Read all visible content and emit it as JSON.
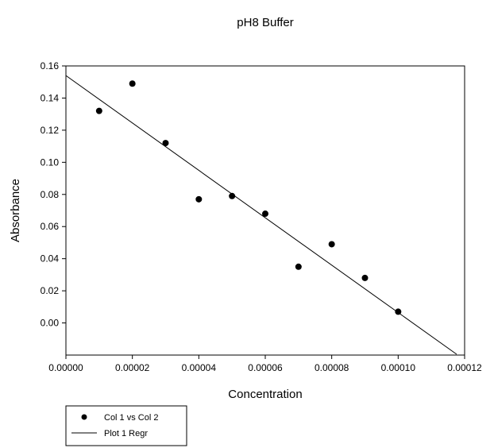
{
  "chart_data": {
    "type": "scatter",
    "title": "pH8 Buffer",
    "xlabel": "Concentration",
    "ylabel": "Absorbance",
    "xlim": [
      0,
      0.00012
    ],
    "ylim": [
      -0.02,
      0.16
    ],
    "x_ticks": [
      "0.00000",
      "0.00002",
      "0.00004",
      "0.00006",
      "0.00008",
      "0.00010",
      "0.00012"
    ],
    "x_tick_values": [
      0,
      2e-05,
      4e-05,
      6e-05,
      8e-05,
      0.0001,
      0.00012
    ],
    "y_ticks": [
      "0.00",
      "0.02",
      "0.04",
      "0.06",
      "0.08",
      "0.10",
      "0.12",
      "0.14",
      "0.16"
    ],
    "y_tick_values": [
      0,
      0.02,
      0.04,
      0.06,
      0.08,
      0.1,
      0.12,
      0.14,
      0.16
    ],
    "grid": false,
    "legend_position": "bottom-left, below plot",
    "series": [
      {
        "name": "Col 1 vs Col 2",
        "type": "scatter",
        "x": [
          1e-05,
          2e-05,
          3e-05,
          4e-05,
          5e-05,
          6e-05,
          7e-05,
          8e-05,
          9e-05,
          0.0001
        ],
        "y": [
          0.132,
          0.149,
          0.112,
          0.077,
          0.079,
          0.068,
          0.035,
          0.049,
          0.028,
          0.007
        ]
      },
      {
        "name": "Plot 1 Regr",
        "type": "line",
        "x": [
          0,
          0.0001176
        ],
        "y": [
          0.154,
          -0.0195
        ]
      }
    ]
  }
}
